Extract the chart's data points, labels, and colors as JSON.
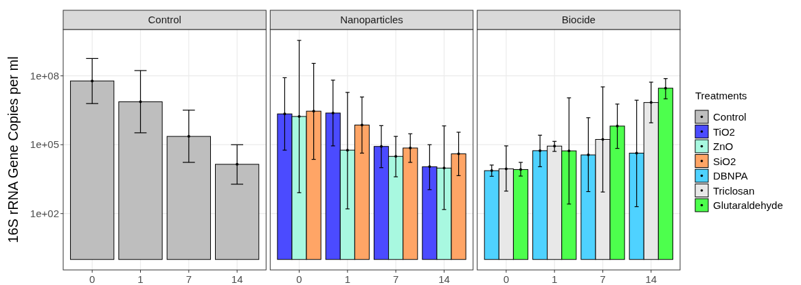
{
  "chart_data": [
    {
      "type": "bar",
      "title": "Control",
      "ylabel": "16S rRNA Gene Copies per ml",
      "categories": [
        "0",
        "1",
        "7",
        "14"
      ],
      "log": true,
      "grid": true,
      "marker": "circle",
      "legend": "right",
      "ylim": [
        0.35,
        10500000000
      ],
      "yticks": [
        {
          "value": 100,
          "label": "1e+02"
        },
        {
          "value": 100000,
          "label": "1e+05"
        },
        {
          "value": 100000000,
          "label": "1e+08"
        }
      ],
      "series": [
        {
          "name": "Control",
          "color": "#bebebe",
          "base": [
            1,
            1,
            1,
            1
          ],
          "values": [
            60000000,
            7400000,
            230000,
            14000
          ],
          "errors": [
            [
              6200000,
              570000000
            ],
            [
              330000,
              170000000
            ],
            [
              17000,
              3200000
            ],
            [
              1900,
              100000
            ]
          ]
        }
      ]
    },
    {
      "type": "bar",
      "title": "Nanoparticles",
      "categories": [
        "0",
        "1",
        "7",
        "14"
      ],
      "log": true,
      "grid": true,
      "marker": "circle",
      "tick_labels": "x",
      "legend": "right",
      "ylim": [
        0.35,
        10500000000
      ],
      "yticks": [
        100,
        100000,
        100000000
      ],
      "series": [
        {
          "name": "TiO2",
          "color": "#4b4bff",
          "base": [
            1,
            1,
            1,
            1
          ],
          "values": [
            2200000,
            2400000,
            84000,
            11000
          ],
          "errors": [
            [
              58000,
              83000000
            ],
            [
              89000,
              65000000
            ],
            [
              10000,
              680000
            ],
            [
              1100,
              100000
            ]
          ]
        },
        {
          "name": "ZnO",
          "color": "#a8f8e0",
          "base": [
            1,
            1,
            1,
            1
          ],
          "values": [
            1700000,
            58000,
            31000,
            9600
          ],
          "errors": [
            [
              810,
              3500000000
            ],
            [
              160,
              19000000
            ],
            [
              4000,
              230000
            ],
            [
              150,
              660000
            ]
          ]
        },
        {
          "name": "SiO2",
          "color": "#ffa566",
          "base": [
            1,
            1,
            1,
            1
          ],
          "values": [
            2900000,
            720000,
            72000,
            40000
          ],
          "errors": [
            [
              23000,
              350000000
            ],
            [
              43000,
              12000000
            ],
            [
              17000,
              300000
            ],
            [
              4500,
              350000
            ]
          ]
        }
      ]
    },
    {
      "type": "bar",
      "title": "Biocide",
      "categories": [
        "0",
        "1",
        "7",
        "14"
      ],
      "log": true,
      "grid": true,
      "marker": "circle",
      "tick_labels": "x",
      "legend": "right",
      "legend_title": "Treatments",
      "ylim": [
        0.35,
        10500000000
      ],
      "yticks": [
        100,
        100000,
        100000000
      ],
      "series": [
        {
          "name": "DBNPA",
          "color": "#4fd2ff",
          "base": [
            1,
            1,
            1,
            1
          ],
          "values": [
            7400,
            55000,
            36000,
            43000
          ],
          "errors": [
            [
              4200,
              13000
            ],
            [
              11000,
              260000
            ],
            [
              910,
              1500000
            ],
            [
              200,
              8700000
            ]
          ]
        },
        {
          "name": "Triclosan",
          "color": "#e8e8e8",
          "base": [
            1,
            1,
            1,
            1
          ],
          "values": [
            8900,
            87000,
            170000,
            6900000
          ],
          "errors": [
            [
              950,
              89000
            ],
            [
              51000,
              140000
            ],
            [
              870,
              33000000
            ],
            [
              900000,
              53000000
            ]
          ]
        },
        {
          "name": "Glutaraldehyde",
          "color": "#4dff4d",
          "base": [
            1,
            1,
            1,
            1
          ],
          "values": [
            8300,
            54000,
            650000,
            29000000
          ],
          "errors": [
            [
              4300,
              17000
            ],
            [
              260,
              11000000
            ],
            [
              69000,
              5900000
            ],
            [
              10000000,
              76000000
            ]
          ]
        }
      ]
    }
  ]
}
